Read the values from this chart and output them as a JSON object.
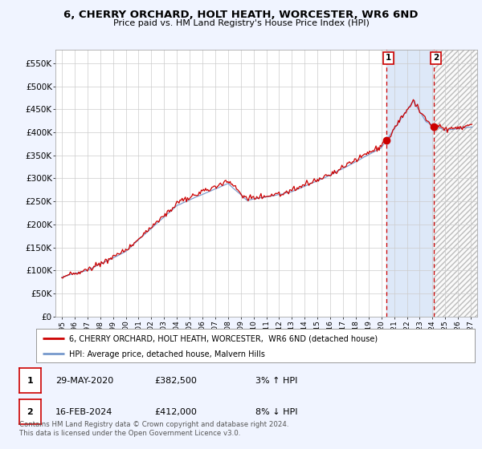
{
  "title": "6, CHERRY ORCHARD, HOLT HEATH, WORCESTER, WR6 6ND",
  "subtitle": "Price paid vs. HM Land Registry's House Price Index (HPI)",
  "legend_line1": "6, CHERRY ORCHARD, HOLT HEATH, WORCESTER,  WR6 6ND (detached house)",
  "legend_line2": "HPI: Average price, detached house, Malvern Hills",
  "annotation1_date": "29-MAY-2020",
  "annotation1_price": "£382,500",
  "annotation1_hpi": "3% ↑ HPI",
  "annotation2_date": "16-FEB-2024",
  "annotation2_price": "£412,000",
  "annotation2_hpi": "8% ↓ HPI",
  "footer": "Contains HM Land Registry data © Crown copyright and database right 2024.\nThis data is licensed under the Open Government Licence v3.0.",
  "sale1_x": 2020.41,
  "sale1_y": 382500,
  "sale2_x": 2024.12,
  "sale2_y": 412000,
  "red_color": "#cc0000",
  "blue_color": "#7799cc",
  "background_color": "#f0f4ff",
  "plot_bg": "#ffffff",
  "shade_between_color": "#dde8f8",
  "hatch_color": "#bbbbbb",
  "ylim": [
    0,
    580000
  ],
  "xlim": [
    1994.5,
    2027.5
  ],
  "yticks": [
    0,
    50000,
    100000,
    150000,
    200000,
    250000,
    300000,
    350000,
    400000,
    450000,
    500000,
    550000
  ],
  "ytick_labels": [
    "£0",
    "£50K",
    "£100K",
    "£150K",
    "£200K",
    "£250K",
    "£300K",
    "£350K",
    "£400K",
    "£450K",
    "£500K",
    "£550K"
  ],
  "hpi_seed": 42,
  "prop_noise_seed": 99
}
